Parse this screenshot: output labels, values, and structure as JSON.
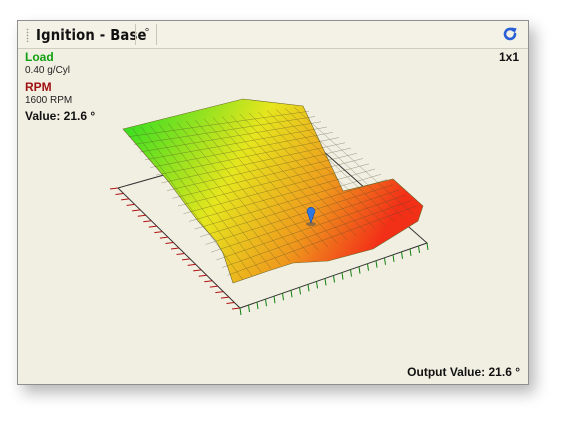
{
  "window": {
    "title": "Ignition - Base",
    "unit_tab": "°",
    "size_label": "1x1",
    "refresh_icon": "refresh-icon"
  },
  "axes": {
    "load": {
      "name": "Load",
      "value": "0.40 g/Cyl",
      "color": "#10a010"
    },
    "rpm": {
      "name": "RPM",
      "value": "1600 RPM",
      "color": "#a01010"
    }
  },
  "value_label": "Value: 21.6 °",
  "output_label": "Output Value: 21.6 °",
  "colors": {
    "low": "#22dd22",
    "mid": "#e6e61e",
    "high": "#f23018",
    "grid": "#3b3b3b"
  },
  "cursor_icon": "pin-marker-icon"
}
